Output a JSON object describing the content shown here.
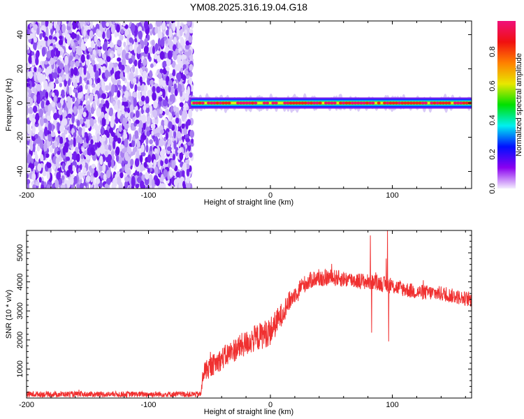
{
  "title": "YM08.2025.316.19.04.G18",
  "chart_data": [
    {
      "type": "heatmap",
      "name": "spectrogram",
      "xlabel": "Height of straight line (km)",
      "ylabel": "Frequency (Hz)",
      "xlim": [
        -200,
        165
      ],
      "ylim": [
        -50,
        48
      ],
      "xticks": [
        -200,
        -100,
        0,
        100
      ],
      "xtick_labels": [
        "-200",
        "-100",
        "0",
        "100"
      ],
      "yticks": [
        -40,
        -20,
        0,
        20,
        40
      ],
      "ytick_labels": [
        "-40",
        "-20",
        "0",
        "20",
        "40"
      ],
      "noise_region_x": [
        -200,
        -65
      ],
      "tone_region_x": [
        -65,
        165
      ],
      "tone_frequency_hz": 0,
      "tone_amplitude": 0.95,
      "noise_amplitude_range": [
        0.0,
        0.1
      ],
      "colorbar": {
        "label": "Normalized spectral amplitude",
        "range": [
          0.0,
          0.98
        ],
        "ticks": [
          0.0,
          0.2,
          0.4,
          0.6,
          0.8
        ],
        "tick_labels": [
          "0.0",
          "0.2",
          "0.4",
          "0.6",
          "0.8"
        ],
        "colors": [
          "#f4eefe",
          "#8a00f0",
          "#0010ff",
          "#00f0f0",
          "#00e000",
          "#e8e800",
          "#ff8000",
          "#f01010",
          "#f0107a"
        ]
      }
    },
    {
      "type": "line",
      "name": "snr",
      "xlabel": "Height of straight line (km)",
      "ylabel": "SNR (10 * v/v)",
      "xlim": [
        -200,
        165
      ],
      "ylim": [
        0,
        5770
      ],
      "xticks": [
        -200,
        -100,
        0,
        100
      ],
      "xtick_labels": [
        "-200",
        "-100",
        "0",
        "100"
      ],
      "yticks": [
        1000,
        2000,
        3000,
        4000,
        5000
      ],
      "ytick_labels": [
        "1000",
        "2000",
        "3000",
        "4000",
        "5000"
      ],
      "color": "#f03030",
      "envelope": [
        [
          -200,
          130
        ],
        [
          -57,
          130
        ],
        [
          -55,
          900
        ],
        [
          -45,
          1200
        ],
        [
          -30,
          1650
        ],
        [
          -15,
          2000
        ],
        [
          0,
          2300
        ],
        [
          8,
          2800
        ],
        [
          15,
          3300
        ],
        [
          25,
          3850
        ],
        [
          35,
          4100
        ],
        [
          50,
          4150
        ],
        [
          70,
          4050
        ],
        [
          90,
          3950
        ],
        [
          105,
          3800
        ],
        [
          120,
          3650
        ],
        [
          140,
          3600
        ],
        [
          165,
          3380
        ]
      ],
      "noise_amplitude": [
        [
          -200,
          110
        ],
        [
          -57,
          110
        ],
        [
          -55,
          350
        ],
        [
          0,
          500
        ],
        [
          20,
          300
        ],
        [
          165,
          250
        ]
      ],
      "spikes": [
        [
          82,
          5600
        ],
        [
          83,
          2250
        ],
        [
          96,
          5770
        ],
        [
          97,
          1950
        ],
        [
          95,
          4800
        ]
      ]
    }
  ]
}
